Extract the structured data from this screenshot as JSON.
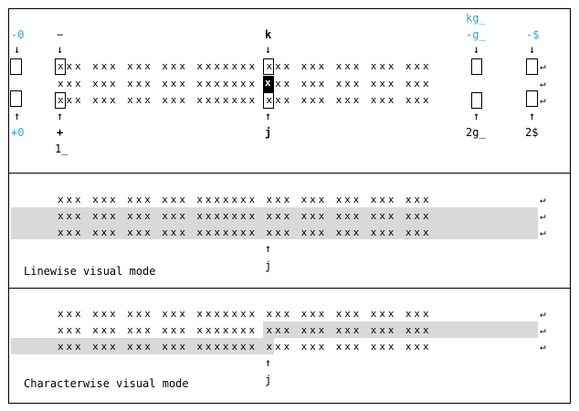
{
  "text_rows": {
    "top": [
      "xxx xxx xxx xxx xxxxxxx xxx xxx xxx xxx xxx",
      "xxx xxx xxx xxx xxxxxxx xxx xxx xxx xxx xxx",
      "xxx xxx xxx xxx xxxxxxx xxx xxx xxx xxx xxx"
    ],
    "eol": "↵"
  },
  "labels": {
    "minus_zero": "-0",
    "plus_zero": "+0",
    "minus": "−",
    "plus": "+",
    "one_underscore": "1_",
    "k": "k",
    "j": "j",
    "kg_": "kg_",
    "minus_g_": "-g_",
    "two_g_": "2g_",
    "minus_dollar": "-$",
    "two_dollar": "2$",
    "down_arrow": "↓",
    "up_arrow": "↑",
    "cursor_char": "x"
  },
  "captions": {
    "linewise": "Linewise visual mode",
    "charwise": "Characterwise visual mode"
  },
  "colors": {
    "accent": "#2aa6d6",
    "highlight": "#d9d9d9"
  }
}
